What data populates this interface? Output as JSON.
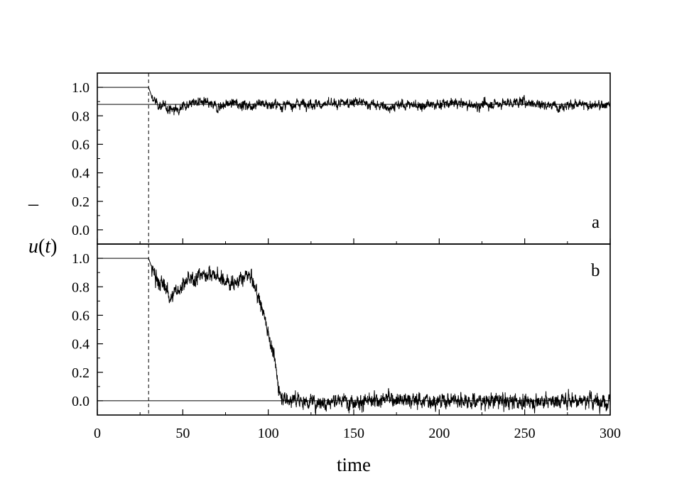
{
  "chart_data": [
    {
      "type": "line",
      "panel_label": "a",
      "xlim": [
        0,
        300
      ],
      "ylim": [
        -0.1,
        1.1
      ],
      "x_ticks": [
        0,
        50,
        100,
        150,
        200,
        250,
        300
      ],
      "y_ticks": [
        0.0,
        0.2,
        0.4,
        0.6,
        0.8,
        1.0
      ],
      "y_tick_labels": [
        "0.0",
        "0.2",
        "0.4",
        "0.6",
        "0.8",
        "1.0"
      ],
      "grid": false,
      "reference_lines": {
        "horizontal": [
          1.0,
          0.88
        ],
        "vertical_dashed": 30
      },
      "series": [
        {
          "x": [
            0,
            30,
            32,
            35,
            40,
            45,
            50,
            55,
            60,
            65,
            70,
            75,
            80,
            85,
            90,
            95,
            100,
            110,
            120,
            130,
            140,
            150,
            160,
            170,
            180,
            190,
            200,
            210,
            220,
            230,
            240,
            250,
            260,
            270,
            280,
            290,
            300
          ],
          "values": [
            1.0,
            1.0,
            0.93,
            0.88,
            0.86,
            0.84,
            0.87,
            0.89,
            0.9,
            0.88,
            0.86,
            0.88,
            0.89,
            0.88,
            0.87,
            0.89,
            0.88,
            0.87,
            0.89,
            0.88,
            0.88,
            0.9,
            0.88,
            0.86,
            0.88,
            0.87,
            0.88,
            0.89,
            0.87,
            0.88,
            0.89,
            0.9,
            0.88,
            0.87,
            0.88,
            0.87,
            0.88
          ],
          "noise": 0.022
        }
      ]
    },
    {
      "type": "line",
      "panel_label": "b",
      "xlim": [
        0,
        300
      ],
      "ylim": [
        -0.1,
        1.1
      ],
      "x_ticks": [
        0,
        50,
        100,
        150,
        200,
        250,
        300
      ],
      "x_tick_labels": [
        "0",
        "50",
        "100",
        "150",
        "200",
        "250",
        "300"
      ],
      "y_ticks": [
        0.0,
        0.2,
        0.4,
        0.6,
        0.8,
        1.0
      ],
      "y_tick_labels": [
        "0.0",
        "0.2",
        "0.4",
        "0.6",
        "0.8",
        "1.0"
      ],
      "xlabel": "time",
      "grid": false,
      "reference_lines": {
        "horizontal": [
          1.0,
          0.0
        ],
        "vertical_dashed": 30
      },
      "series": [
        {
          "x": [
            0,
            30,
            32,
            35,
            40,
            43,
            45,
            50,
            55,
            60,
            65,
            70,
            75,
            80,
            85,
            88,
            90,
            92,
            95,
            98,
            100,
            103,
            105,
            107,
            110,
            120,
            130,
            140,
            150,
            160,
            170,
            180,
            190,
            200,
            210,
            220,
            230,
            240,
            250,
            260,
            270,
            280,
            290,
            300
          ],
          "values": [
            1.0,
            1.0,
            0.93,
            0.84,
            0.8,
            0.72,
            0.75,
            0.82,
            0.85,
            0.88,
            0.9,
            0.87,
            0.84,
            0.83,
            0.85,
            0.88,
            0.86,
            0.8,
            0.7,
            0.58,
            0.48,
            0.33,
            0.18,
            0.05,
            0.01,
            0.0,
            -0.01,
            0.0,
            0.0,
            -0.01,
            0.02,
            0.01,
            0.0,
            0.0,
            0.01,
            0.0,
            0.0,
            0.0,
            -0.01,
            0.0,
            0.0,
            0.01,
            0.0,
            0.0
          ],
          "noise": 0.035
        }
      ]
    }
  ],
  "ylabel": {
    "bar": "–",
    "symbol": "u",
    "open_paren": "(",
    "variable": "t",
    "close_paren": ")"
  }
}
